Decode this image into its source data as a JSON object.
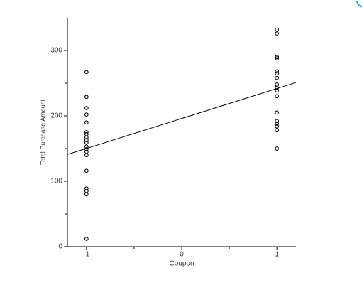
{
  "chart_data": {
    "type": "scatter",
    "xlabel": "Coupon",
    "ylabel": "Total Purchase Amount",
    "x": [
      -1,
      -1,
      -1,
      -1,
      -1,
      -1,
      -1,
      -1,
      -1,
      -1,
      -1,
      -1,
      -1,
      -1,
      -1,
      -1,
      -1,
      -1,
      -1,
      1,
      1,
      1,
      1,
      1,
      1,
      1,
      1,
      1,
      1,
      1,
      1,
      1,
      1,
      1,
      1,
      1
    ],
    "values": [
      267,
      229,
      212,
      202,
      190,
      175,
      172,
      167,
      163,
      159,
      153,
      149,
      145,
      140,
      116,
      89,
      85,
      80,
      12,
      332,
      326,
      290,
      288,
      268,
      265,
      258,
      248,
      243,
      239,
      230,
      205,
      192,
      188,
      184,
      178,
      150
    ],
    "color": "#000000",
    "fit_line": {
      "x": [
        -1.2,
        1.2
      ],
      "y": [
        141,
        251
      ]
    },
    "xlim": [
      -1.2,
      1.2
    ],
    "ylim": [
      0,
      350
    ],
    "xticks": [
      -1,
      0,
      1
    ],
    "yticks": [
      0,
      100,
      200,
      300
    ],
    "xminor_ticks": [
      -0.5,
      0.5
    ],
    "yminor_ticks": [
      50,
      150,
      250
    ]
  }
}
